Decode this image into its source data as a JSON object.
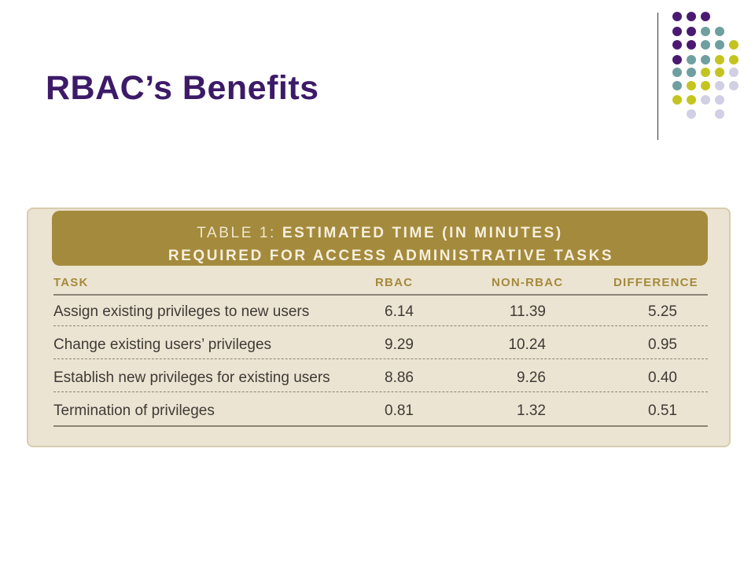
{
  "slide": {
    "title": "RBAC’s Benefits"
  },
  "decoration": {
    "colors": {
      "purple": "#4a1a72",
      "teal": "#6f9fa0",
      "olive": "#c4c420",
      "lavender": "#d0cfe4"
    }
  },
  "table": {
    "title_label": "TABLE 1:",
    "title_rest": "ESTIMATED TIME (IN MINUTES)",
    "subtitle": "REQUIRED FOR ACCESS ADMINISTRATIVE TASKS",
    "columns": [
      "TASK",
      "RBAC",
      "NON-RBAC",
      "DIFFERENCE"
    ],
    "rows": [
      [
        "Assign existing privileges to new users",
        "6.14",
        "11.39",
        "5.25"
      ],
      [
        "Change existing users’ privileges",
        "9.29",
        "10.24",
        "0.95"
      ],
      [
        "Establish new privileges for existing users",
        "8.86",
        "9.26",
        "0.40"
      ],
      [
        "Termination of privileges",
        "0.81",
        "1.32",
        "0.51"
      ]
    ],
    "colors": {
      "banner": "#a48a3c",
      "background": "#ece4d2",
      "header_text": "#a48a3c"
    }
  }
}
